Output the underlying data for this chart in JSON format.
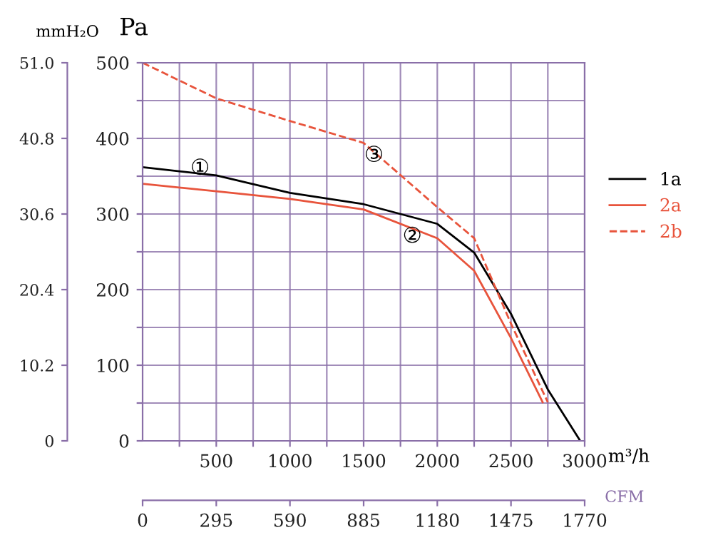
{
  "chart_data": {
    "type": "line",
    "xlabel": "m³/h",
    "ylabel": "Pa",
    "y2label": "mmH₂O",
    "x2label": "CFM",
    "series": [
      {
        "name": "1a",
        "color": "#000000",
        "line_style": "solid",
        "x": [
          0,
          500,
          1000,
          1500,
          2000,
          2250,
          2500,
          2750,
          2970
        ],
        "values": [
          362,
          351,
          328,
          313,
          287,
          249,
          168,
          68,
          0
        ]
      },
      {
        "name": "2a",
        "color": "#e8543c",
        "line_style": "solid",
        "x": [
          0,
          500,
          1000,
          1500,
          2000,
          2250,
          2500,
          2715
        ],
        "values": [
          340,
          330,
          320,
          306,
          268,
          225,
          136,
          51
        ]
      },
      {
        "name": "2b",
        "color": "#e8543c",
        "line_style": "dashed",
        "x": [
          0,
          500,
          1000,
          1500,
          2000,
          2250,
          2500,
          2750
        ],
        "values": [
          500,
          453,
          423,
          394,
          309,
          268,
          155,
          51
        ]
      }
    ],
    "annotations": [
      {
        "text": "①",
        "x": 390,
        "y": 360
      },
      {
        "text": "②",
        "x": 1830,
        "y": 270
      },
      {
        "text": "③",
        "x": 1570,
        "y": 377
      }
    ],
    "xlim": [
      0,
      3000
    ],
    "xticks": [
      {
        "value": 250,
        "label": null
      },
      500,
      {
        "value": 750,
        "label": null
      },
      1000,
      {
        "value": 1250,
        "label": null
      },
      1500,
      {
        "value": 1750,
        "label": null
      },
      2000,
      {
        "value": 2250,
        "label": null
      },
      2500,
      {
        "value": 2750,
        "label": null
      },
      3000
    ],
    "ylim": [
      0,
      500
    ],
    "yticks": [
      0,
      {
        "value": 50,
        "label": null
      },
      100,
      {
        "value": 150,
        "label": null
      },
      200,
      {
        "value": 250,
        "label": null
      },
      300,
      {
        "value": 350,
        "label": null
      },
      400,
      {
        "value": 450,
        "label": null
      },
      500
    ],
    "y2lim": [
      0,
      51.0
    ],
    "y2ticks": [
      0,
      {
        "value": 10.2,
        "label": "10.2"
      },
      {
        "value": 20.4,
        "label": "20.4"
      },
      {
        "value": 30.6,
        "label": "30.6"
      },
      {
        "value": 40.8,
        "label": "40.8"
      },
      {
        "value": 51.0,
        "label": "51.0"
      }
    ],
    "x2lim": [
      0,
      1770
    ],
    "x2ticks": [
      0,
      295,
      590,
      885,
      1180,
      1475,
      1770
    ],
    "grid": true,
    "legend": "right",
    "marker": "none"
  }
}
